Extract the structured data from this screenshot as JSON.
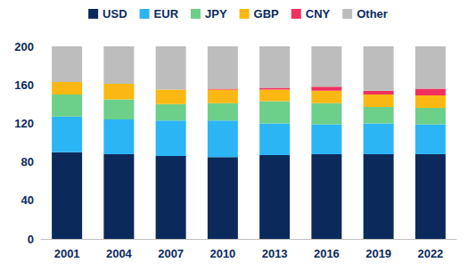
{
  "chart_data": {
    "type": "bar",
    "stacked": true,
    "grid": false,
    "legend": "top",
    "categories": [
      "2001",
      "2004",
      "2007",
      "2010",
      "2013",
      "2016",
      "2019",
      "2022"
    ],
    "series": [
      {
        "name": "USD",
        "color": "#0b2a5b",
        "values": [
          90,
          88,
          86,
          85,
          87,
          88,
          88,
          88
        ]
      },
      {
        "name": "EUR",
        "color": "#2bb5f5",
        "values": [
          37,
          36,
          37,
          38,
          33,
          31,
          32,
          31
        ]
      },
      {
        "name": "JPY",
        "color": "#6ccf8a",
        "values": [
          23,
          21,
          17,
          18,
          23,
          22,
          17,
          17
        ]
      },
      {
        "name": "GBP",
        "color": "#fbb812",
        "values": [
          13,
          16,
          15,
          14,
          12,
          13,
          13,
          13
        ]
      },
      {
        "name": "CNY",
        "color": "#f0315f",
        "values": [
          0,
          0,
          0,
          1,
          2,
          4,
          4,
          7
        ]
      },
      {
        "name": "Other",
        "color": "#bdbdbd",
        "values": [
          37,
          39,
          45,
          44,
          43,
          42,
          46,
          44
        ]
      }
    ],
    "ylim": [
      0,
      200
    ],
    "yticks": [
      0,
      40,
      80,
      120,
      160,
      200
    ]
  }
}
